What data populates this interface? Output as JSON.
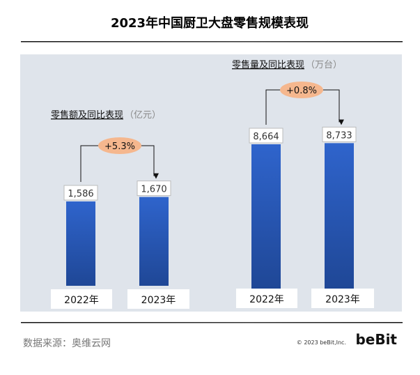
{
  "title": "2023年中国厨卫大盘零售规模表现",
  "source": "数据来源：奥维云网",
  "copyright": "© 2023 beBit,Inc.",
  "logo": "beBit",
  "colors": {
    "panel": "#dfe4eb",
    "bar_top": "#2f64cc",
    "bar_bottom": "#1f4796",
    "growth": "#f5b78e"
  },
  "chart_data": [
    {
      "type": "bar",
      "title": "零售额及同比表现",
      "unit": "（亿元）",
      "categories": [
        "2022年",
        "2023年"
      ],
      "values": [
        1586,
        1670
      ],
      "value_labels": [
        "1,586",
        "1,670"
      ],
      "growth": "+5.3%",
      "ylim": [
        0,
        1586
      ]
    },
    {
      "type": "bar",
      "title": "零售量及同比表现",
      "unit": "（万台）",
      "categories": [
        "2022年",
        "2023年"
      ],
      "values": [
        8664,
        8733
      ],
      "value_labels": [
        "8,664",
        "8,733"
      ],
      "growth": "+0.8%",
      "ylim": [
        0,
        8664
      ]
    }
  ]
}
